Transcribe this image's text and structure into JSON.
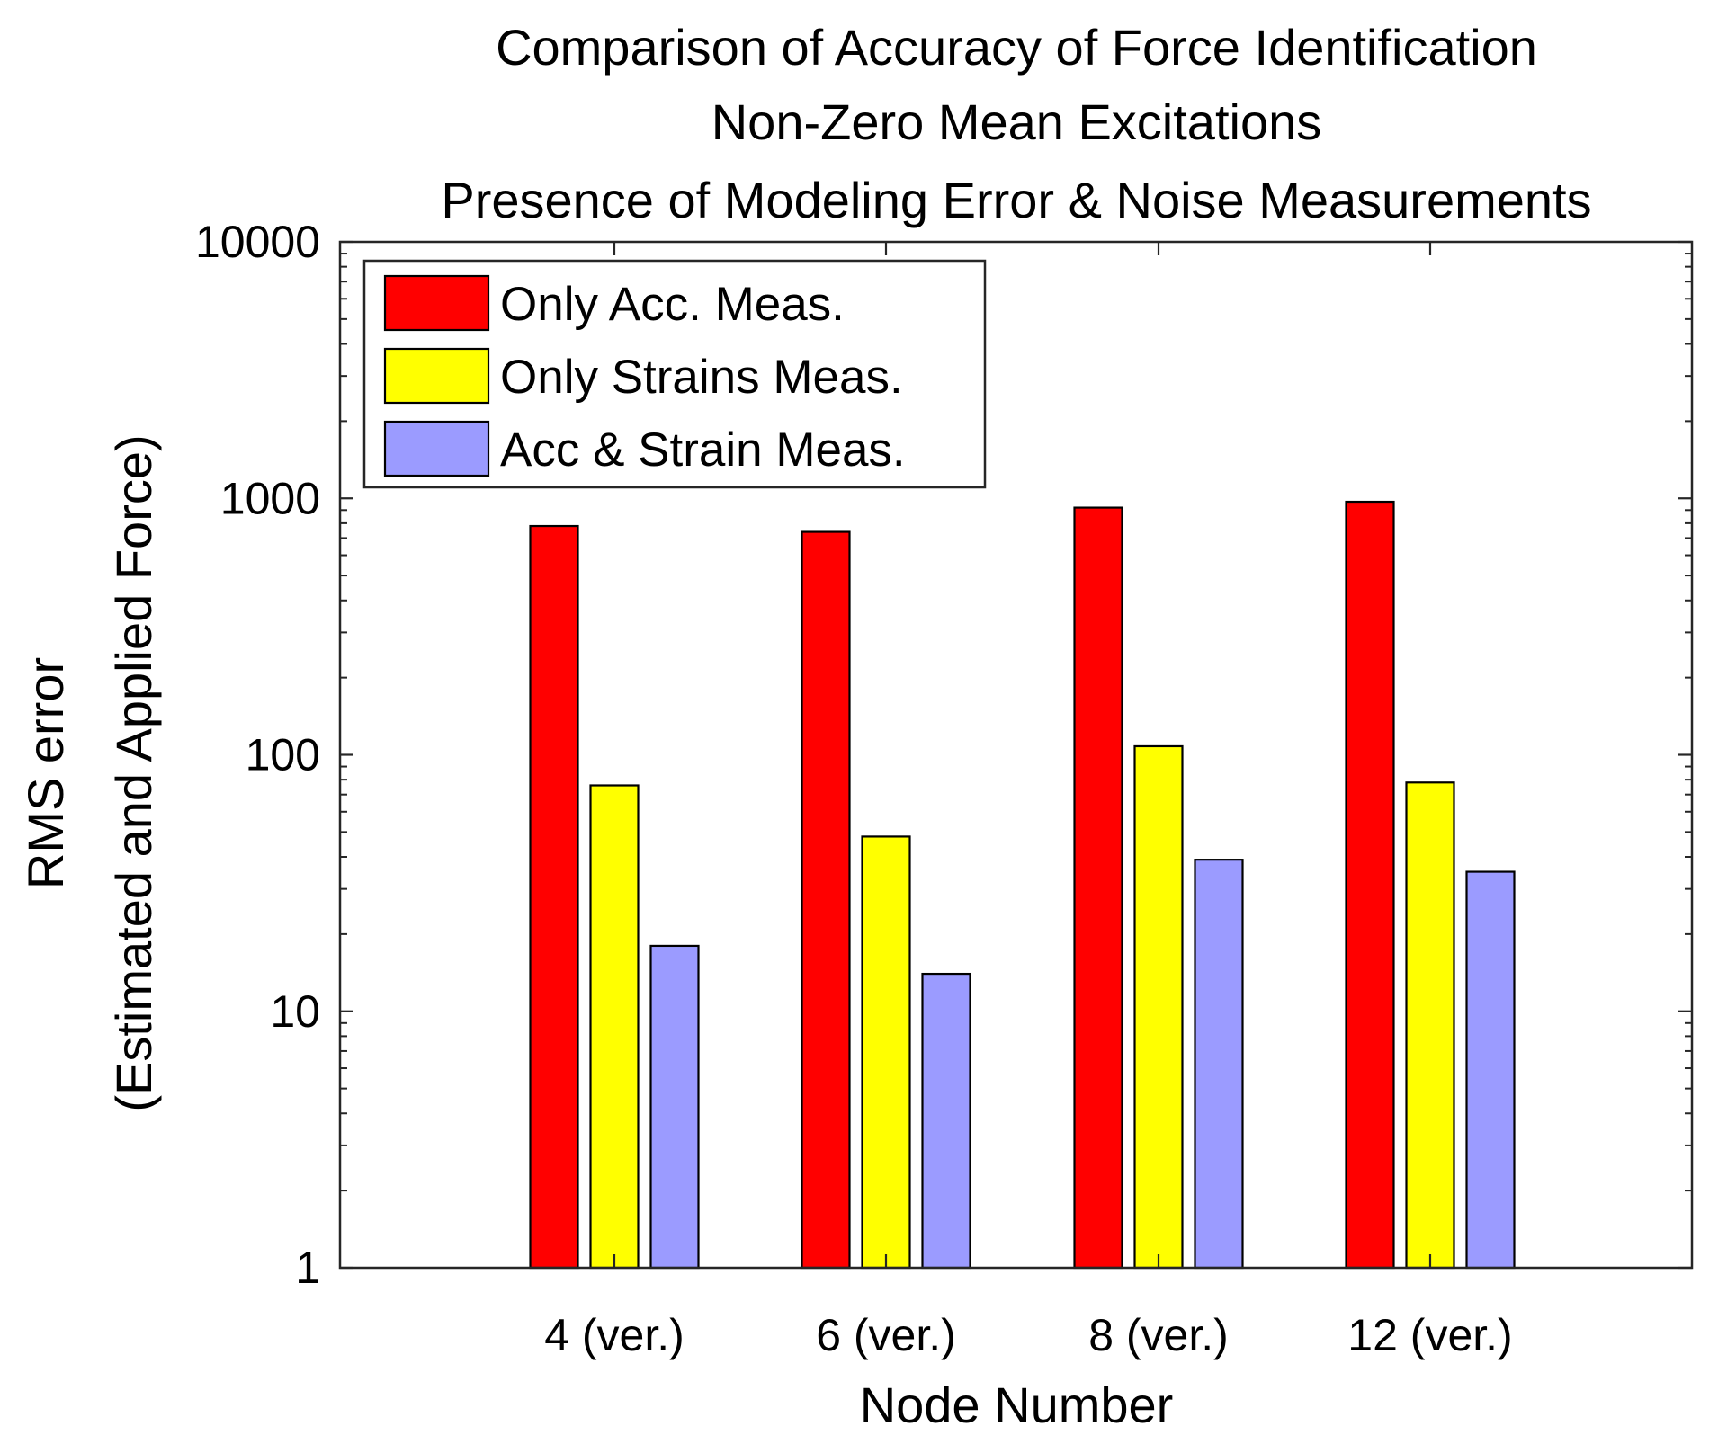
{
  "chart_data": {
    "type": "bar",
    "title": [
      "Comparison of Accuracy of Force Identification",
      "Non-Zero Mean Excitations",
      "Presence of Modeling Error & Noise Measurements"
    ],
    "xlabel": "Node Number",
    "ylabel": [
      "RMS error",
      "(Estimated and Applied Force)"
    ],
    "yscale": "log",
    "ylim": [
      1,
      10000
    ],
    "yticks": [
      1,
      10,
      100,
      1000,
      10000
    ],
    "ytick_labels": [
      "1",
      "10",
      "100",
      "1000",
      "10000"
    ],
    "categories": [
      "4 (ver.)",
      "6 (ver.)",
      "8 (ver.)",
      "12 (ver.)"
    ],
    "series": [
      {
        "name": "Only Acc. Meas.",
        "color": "#ff0000",
        "values": [
          780,
          740,
          920,
          970
        ]
      },
      {
        "name": "Only Strains Meas.",
        "color": "#ffff00",
        "values": [
          76,
          48,
          108,
          78
        ]
      },
      {
        "name": "Acc & Strain Meas.",
        "color": "#9b9bff",
        "values": [
          18,
          14,
          39,
          35
        ]
      }
    ],
    "legend_position": "top-left",
    "grid": false
  }
}
